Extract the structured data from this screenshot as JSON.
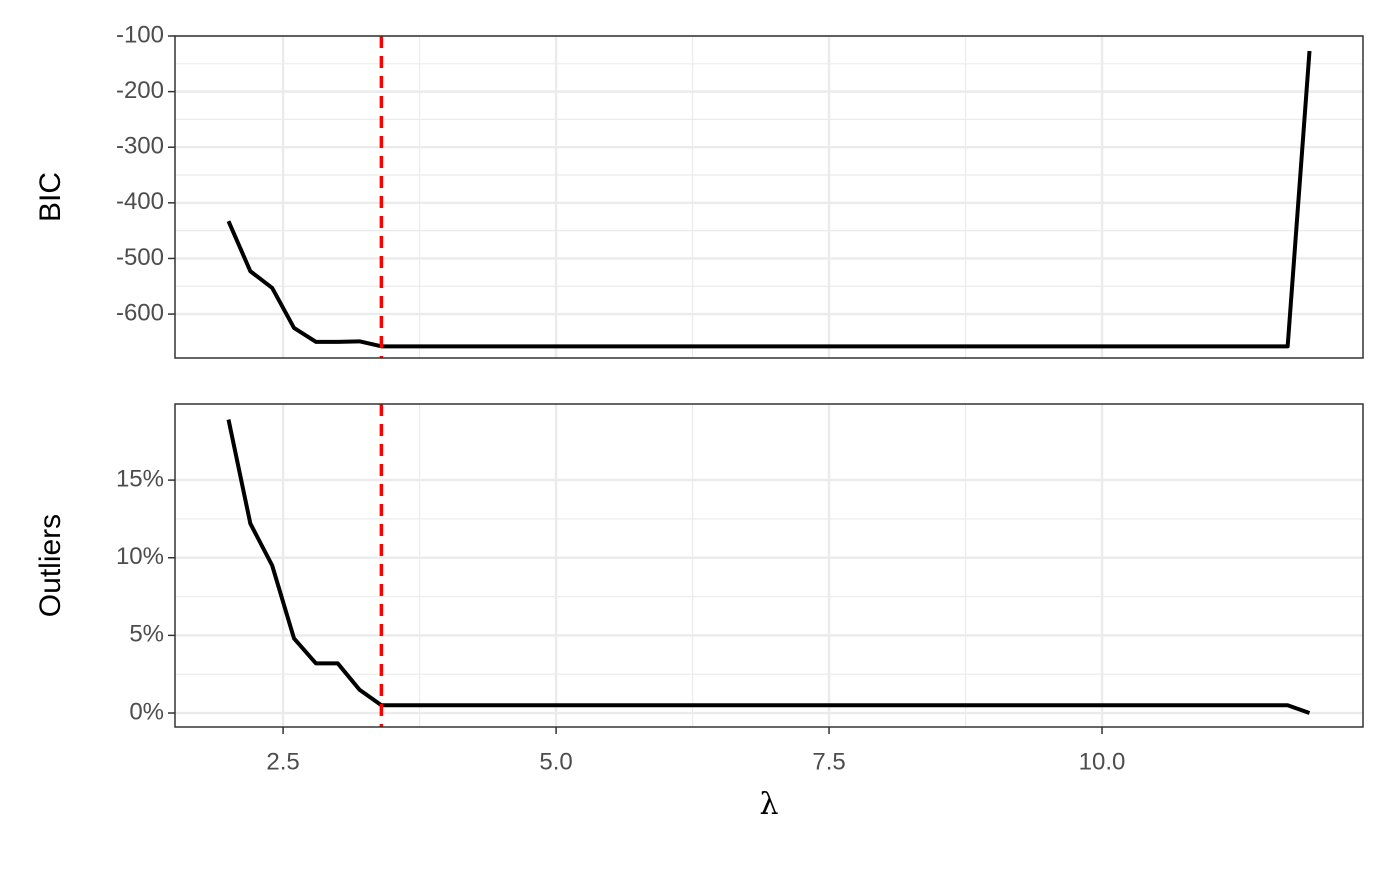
{
  "chart_data": [
    {
      "type": "line",
      "ylabel": "BIC",
      "x": [
        2.0,
        2.2,
        2.4,
        2.6,
        2.8,
        3.0,
        3.2,
        3.4,
        11.7,
        11.9
      ],
      "series": [
        {
          "color": "#000000",
          "values": [
            -433,
            -523,
            -553,
            -625,
            -650,
            -650,
            -649,
            -658,
            -658,
            -127
          ]
        }
      ],
      "vline": 3.4,
      "vline_color": "#ff0000",
      "xlim": [
        1.51,
        12.39
      ],
      "xticks": [
        2.5,
        {
          "value": 5,
          "label": "5.0"
        },
        7.5,
        {
          "value": 10,
          "label": "10.0"
        }
      ],
      "ylim": [
        -679,
        -100
      ],
      "yticks": [
        -600,
        -500,
        -400,
        -300,
        -200,
        -100
      ],
      "grid": true
    },
    {
      "type": "line",
      "ylabel": "Outliers",
      "xlabel": "λ",
      "x": [
        2.0,
        2.2,
        2.4,
        2.6,
        2.8,
        3.0,
        3.2,
        3.4,
        11.7,
        11.9
      ],
      "series": [
        {
          "color": "#000000",
          "values": [
            18.9,
            12.2,
            9.5,
            4.8,
            3.2,
            3.2,
            1.5,
            0.5,
            0.5,
            0
          ]
        }
      ],
      "vline": 3.4,
      "vline_color": "#ff0000",
      "xlim": [
        1.51,
        12.39
      ],
      "xticks": [
        2.5,
        {
          "value": 5,
          "label": "5.0"
        },
        7.5,
        {
          "value": 10,
          "label": "10.0"
        }
      ],
      "ylim": [
        -0.9,
        19.9
      ],
      "yticks": [
        {
          "value": 0,
          "label": "0%"
        },
        {
          "value": 5,
          "label": "5%"
        },
        {
          "value": 10,
          "label": "10%"
        },
        {
          "value": 15,
          "label": "15%"
        }
      ],
      "grid": true
    }
  ]
}
